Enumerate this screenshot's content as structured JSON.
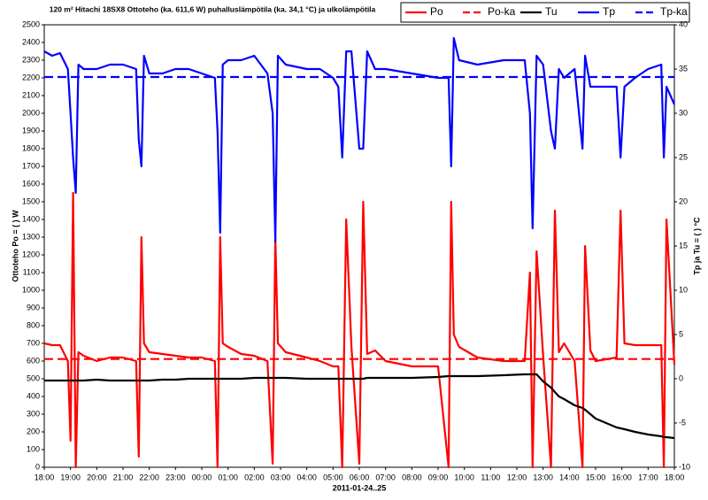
{
  "chart_data": {
    "type": "line",
    "title": "120 m² Hitachi 18SX8 Ottoteho (ka. 611,6 W) puhalluslämpötila (ka. 34,1 °C) ja ulkolämpötila",
    "x_label": "2011-01-24..25",
    "y_label": "Ottoteho Po = ( ) W",
    "y2_label": "Tp ja Tu = ( ) °C",
    "x": [
      0,
      0.3,
      0.6,
      0.9,
      1.0,
      1.1,
      1.2,
      1.3,
      1.5,
      2,
      2.5,
      3,
      3.5,
      3.6,
      3.7,
      3.8,
      4,
      4.5,
      5,
      5.5,
      6,
      6.5,
      6.6,
      6.7,
      6.8,
      7,
      7.5,
      8,
      8.5,
      8.7,
      8.8,
      8.9,
      9.2,
      10,
      10.5,
      11,
      11.2,
      11.35,
      11.5,
      11.7,
      12.0,
      12.15,
      12.3,
      12.6,
      13,
      14,
      15,
      15.4,
      15.5,
      15.6,
      15.8,
      16.5,
      17.5,
      18.3,
      18.5,
      18.6,
      18.75,
      19.0,
      19.3,
      19.45,
      19.6,
      19.8,
      20.2,
      20.5,
      20.6,
      20.8,
      21,
      21.8,
      21.95,
      22.1,
      22.5,
      23,
      23.5,
      23.6,
      23.7,
      24
    ],
    "series": [
      {
        "name": "Po",
        "color": "#ff0000",
        "axis": "y",
        "dashed": false,
        "values": [
          700,
          690,
          690,
          600,
          150,
          1550,
          0,
          650,
          630,
          600,
          620,
          620,
          600,
          60,
          1300,
          700,
          650,
          640,
          630,
          620,
          620,
          600,
          0,
          1300,
          700,
          680,
          640,
          630,
          600,
          20,
          1300,
          700,
          650,
          620,
          600,
          570,
          570,
          0,
          1400,
          680,
          20,
          1500,
          640,
          660,
          600,
          570,
          570,
          0,
          1500,
          750,
          680,
          620,
          600,
          600,
          1100,
          0,
          1220,
          630,
          0,
          1450,
          650,
          700,
          600,
          0,
          1250,
          660,
          600,
          620,
          1450,
          700,
          690,
          690,
          690,
          0,
          1400,
          580
        ]
      },
      {
        "name": "Po-ka",
        "color": "#ff0000",
        "axis": "y",
        "dashed": true,
        "x": [
          0,
          24
        ],
        "values": [
          611.6,
          611.6
        ]
      },
      {
        "name": "Tu",
        "color": "#000000",
        "axis": "y2",
        "dashed": false,
        "values": [
          -0.2,
          -0.2,
          -0.2,
          -0.2,
          -0.2,
          -0.2,
          -0.2,
          -0.2,
          -0.2,
          -0.1,
          -0.2,
          -0.2,
          -0.2,
          -0.2,
          -0.2,
          -0.2,
          -0.2,
          -0.1,
          -0.1,
          0,
          0,
          0,
          0,
          0,
          0,
          0,
          0,
          0.1,
          0.1,
          0.1,
          0.1,
          0.1,
          0.1,
          0,
          0,
          0,
          0,
          0,
          0,
          0,
          0,
          0,
          0.1,
          0.1,
          0.1,
          0.1,
          0.2,
          0.3,
          0.3,
          0.3,
          0.3,
          0.3,
          0.4,
          0.5,
          0.5,
          0.5,
          0.5,
          -0.3,
          -1,
          -1.5,
          -2,
          -2.3,
          -3,
          -3.3,
          -3.5,
          -4,
          -4.5,
          -5.5,
          -5.6,
          -5.7,
          -6,
          -6.3,
          -6.5,
          -6.6,
          -6.6,
          -6.7
        ]
      },
      {
        "name": "Tp",
        "color": "#0000ff",
        "axis": "y2",
        "dashed": false,
        "values": [
          37,
          36.5,
          36.8,
          35,
          30,
          25,
          21,
          35.5,
          35,
          35,
          35.5,
          35.5,
          35,
          27,
          24,
          36.5,
          34.5,
          34.5,
          35,
          35,
          34.5,
          34,
          28,
          16.5,
          35.5,
          36,
          36,
          36.5,
          34.5,
          30,
          15.5,
          36.5,
          35.5,
          35,
          35,
          34,
          33,
          25,
          37,
          37,
          26,
          26,
          37,
          35,
          35,
          34.5,
          34,
          34,
          24,
          38.5,
          36,
          35.5,
          36,
          36,
          30,
          17,
          36.5,
          35.5,
          28,
          26,
          35,
          34,
          35,
          26,
          36.5,
          33,
          33,
          33,
          25,
          33,
          34,
          35,
          35.5,
          25,
          33,
          31
        ]
      },
      {
        "name": "Tp-ka",
        "color": "#0000ff",
        "axis": "y2",
        "dashed": true,
        "x": [
          0,
          24
        ],
        "values": [
          34.1,
          34.1
        ]
      }
    ],
    "xlim": [
      0,
      24
    ],
    "xticks": [
      {
        "value": 0,
        "label": "18:00"
      },
      {
        "value": 1,
        "label": "19:00"
      },
      {
        "value": 2,
        "label": "20:00"
      },
      {
        "value": 3,
        "label": "21:00"
      },
      {
        "value": 4,
        "label": "22:00"
      },
      {
        "value": 5,
        "label": "23:00"
      },
      {
        "value": 6,
        "label": "00:00"
      },
      {
        "value": 7,
        "label": "01:00"
      },
      {
        "value": 8,
        "label": "02:00"
      },
      {
        "value": 9,
        "label": "03:00"
      },
      {
        "value": 10,
        "label": "04:00"
      },
      {
        "value": 11,
        "label": "05:00"
      },
      {
        "value": 12,
        "label": "06:00"
      },
      {
        "value": 13,
        "label": "07:00"
      },
      {
        "value": 14,
        "label": "08:00"
      },
      {
        "value": 15,
        "label": "09:00"
      },
      {
        "value": 16,
        "label": "10:00"
      },
      {
        "value": 17,
        "label": "11:00"
      },
      {
        "value": 18,
        "label": "12:00"
      },
      {
        "value": 19,
        "label": "13:00"
      },
      {
        "value": 20,
        "label": "14:00"
      },
      {
        "value": 21,
        "label": "15:00"
      },
      {
        "value": 22,
        "label": "16:00"
      },
      {
        "value": 23,
        "label": "17:00"
      },
      {
        "value": 24,
        "label": "18:00"
      }
    ],
    "ylim": [
      0,
      2500
    ],
    "yticks": [
      0,
      100,
      200,
      300,
      400,
      500,
      600,
      700,
      800,
      900,
      1000,
      1100,
      1200,
      1300,
      1400,
      1500,
      1600,
      1700,
      1800,
      1900,
      2000,
      2100,
      2200,
      2300,
      2400,
      2500
    ],
    "y2lim": [
      -10,
      40
    ],
    "y2ticks": [
      -10,
      -5,
      0,
      5,
      10,
      15,
      20,
      25,
      30,
      35,
      40
    ],
    "grid": false,
    "legend": "top-right"
  }
}
